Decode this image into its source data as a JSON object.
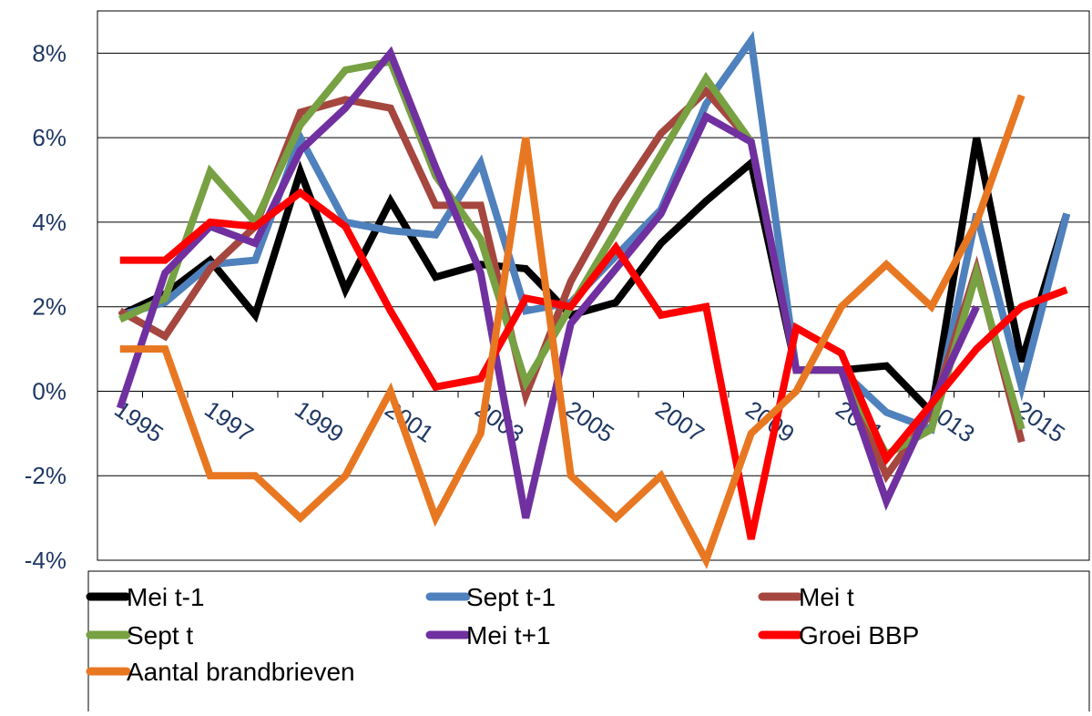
{
  "chart_data": {
    "type": "line",
    "categories": [
      "1995",
      null,
      "1997",
      null,
      "1999",
      null,
      "2001",
      null,
      "2003",
      null,
      "2005",
      null,
      "2007",
      null,
      "2009",
      null,
      "2011",
      null,
      "2013",
      null,
      "2015",
      null
    ],
    "series": [
      {
        "name": "Mei t-1",
        "color": "#000000",
        "values": [
          1.8,
          2.3,
          3.1,
          1.8,
          5.2,
          2.4,
          4.5,
          2.7,
          3.0,
          2.9,
          1.8,
          2.1,
          3.5,
          4.5,
          5.4,
          0.5,
          0.5,
          0.6,
          -0.5,
          6.0,
          0.7,
          4.2
        ]
      },
      {
        "name": "Sept t-1",
        "color": "#4f81bd",
        "values": [
          1.8,
          2.1,
          3.0,
          3.1,
          6.0,
          4.0,
          3.8,
          3.7,
          5.4,
          1.9,
          2.1,
          3.2,
          4.3,
          6.8,
          8.3,
          0.5,
          0.5,
          -0.5,
          -0.9,
          4.2,
          0.1,
          4.2
        ]
      },
      {
        "name": "Mei t",
        "color": "#a5473f",
        "values": [
          1.9,
          1.3,
          2.9,
          3.9,
          6.6,
          6.9,
          6.7,
          4.4,
          4.4,
          -0.1,
          2.6,
          4.5,
          6.1,
          7.1,
          5.9,
          0.5,
          0.5,
          -2.0,
          -0.5,
          2.9,
          -1.2,
          null
        ]
      },
      {
        "name": "Sept t",
        "color": "#77a142",
        "values": [
          1.7,
          2.2,
          5.2,
          4.0,
          6.3,
          7.6,
          7.8,
          5.1,
          3.6,
          0.2,
          2.0,
          3.8,
          5.6,
          7.4,
          5.9,
          0.5,
          0.5,
          -1.5,
          -0.9,
          2.8,
          -0.9,
          null
        ]
      },
      {
        "name": "Mei t+1",
        "color": "#7030a0",
        "values": [
          -0.4,
          2.8,
          3.9,
          3.5,
          5.7,
          6.7,
          8.0,
          5.3,
          2.8,
          -3.0,
          1.6,
          2.9,
          4.2,
          6.5,
          5.9,
          0.5,
          0.5,
          -2.6,
          -0.3,
          2.0,
          null,
          null
        ]
      },
      {
        "name": "Groei BBP",
        "color": "#ff0000",
        "values": [
          3.1,
          3.1,
          4.0,
          3.9,
          4.7,
          3.9,
          1.9,
          0.1,
          0.3,
          2.2,
          2.0,
          3.4,
          1.8,
          2.0,
          -3.5,
          1.5,
          0.9,
          -1.6,
          -0.3,
          1.0,
          2.0,
          2.4
        ]
      },
      {
        "name": "Aantal brandbrieven",
        "color": "#e87722",
        "values": [
          1,
          1,
          -2,
          -2,
          -3,
          -2,
          0,
          -3,
          -1,
          6,
          -2,
          -3,
          -2,
          -4,
          -1,
          0,
          2,
          3,
          2,
          4,
          7,
          null
        ]
      }
    ],
    "ylim": [
      -4,
      9
    ],
    "yticks": [
      {
        "value": -4,
        "label": "-4%"
      },
      {
        "value": -2,
        "label": "-2%"
      },
      {
        "value": 0,
        "label": "0%"
      },
      {
        "value": 2,
        "label": "2%"
      },
      {
        "value": 4,
        "label": "4%"
      },
      {
        "value": 6,
        "label": "6%"
      },
      {
        "value": 8,
        "label": "8%"
      }
    ],
    "grid": true,
    "legend": "bottom"
  }
}
